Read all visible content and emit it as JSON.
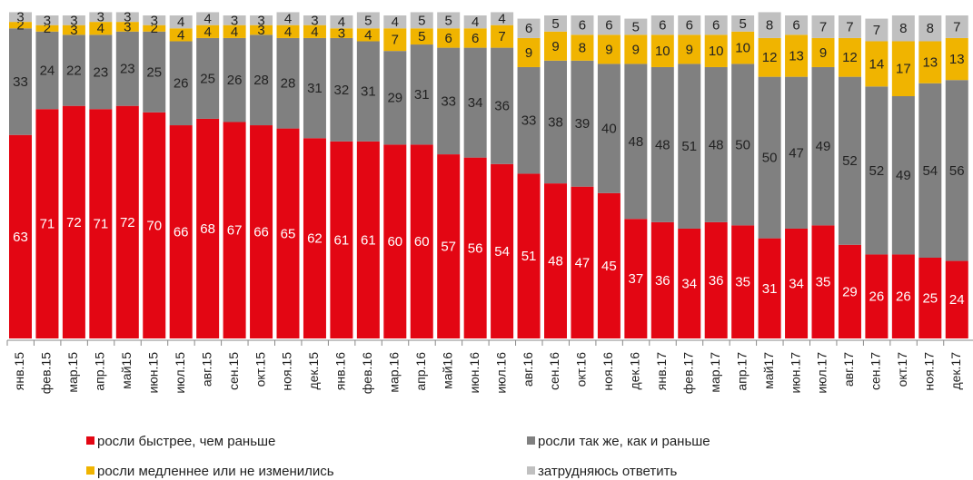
{
  "chart_data": {
    "type": "stacked_bar",
    "categories": [
      "янв.15",
      "фев.15",
      "мар.15",
      "апр.15",
      "май15",
      "июн.15",
      "июл.15",
      "авг.15",
      "сен.15",
      "окт.15",
      "ноя.15",
      "дек.15",
      "янв.16",
      "фев.16",
      "мар.16",
      "апр.16",
      "май16",
      "июн.16",
      "июл.16",
      "авг.16",
      "сен.16",
      "окт.16",
      "ноя.16",
      "дек.16",
      "янв.17",
      "фев.17",
      "мар.17",
      "апр.17",
      "май17",
      "июн.17",
      "июл.17",
      "авг.17",
      "сен.17",
      "окт.17",
      "ноя.17",
      "дек.17"
    ],
    "series": [
      {
        "name": "росли быстрее, чем раньше",
        "color": "#e30613",
        "values": [
          63,
          71,
          72,
          71,
          72,
          70,
          66,
          68,
          67,
          66,
          65,
          62,
          61,
          61,
          60,
          60,
          57,
          56,
          54,
          51,
          48,
          47,
          45,
          37,
          36,
          34,
          36,
          35,
          31,
          34,
          35,
          29,
          26,
          26,
          25,
          24
        ]
      },
      {
        "name": "росли так же, как и раньше",
        "color": "#808080",
        "values": [
          33,
          24,
          22,
          23,
          23,
          25,
          26,
          25,
          26,
          28,
          28,
          31,
          32,
          31,
          29,
          31,
          33,
          34,
          36,
          33,
          38,
          39,
          40,
          48,
          48,
          51,
          48,
          50,
          50,
          47,
          49,
          52,
          52,
          49,
          54,
          56
        ]
      },
      {
        "name": "росли медленнее или не изменились",
        "color": "#f0b400",
        "values": [
          2,
          2,
          3,
          4,
          3,
          2,
          4,
          4,
          4,
          3,
          4,
          4,
          3,
          4,
          7,
          5,
          6,
          6,
          7,
          9,
          9,
          8,
          9,
          9,
          10,
          9,
          10,
          10,
          12,
          13,
          9,
          12,
          14,
          17,
          13,
          13
        ]
      },
      {
        "name": "затрудняюсь ответить",
        "color": "#c0c0c0",
        "values": [
          3,
          3,
          3,
          3,
          3,
          3,
          4,
          4,
          3,
          3,
          4,
          3,
          4,
          5,
          4,
          5,
          5,
          4,
          4,
          6,
          5,
          6,
          6,
          5,
          6,
          6,
          6,
          5,
          8,
          6,
          7,
          7,
          7,
          8,
          8,
          7
        ]
      }
    ],
    "ylim": [
      0,
      100
    ]
  }
}
